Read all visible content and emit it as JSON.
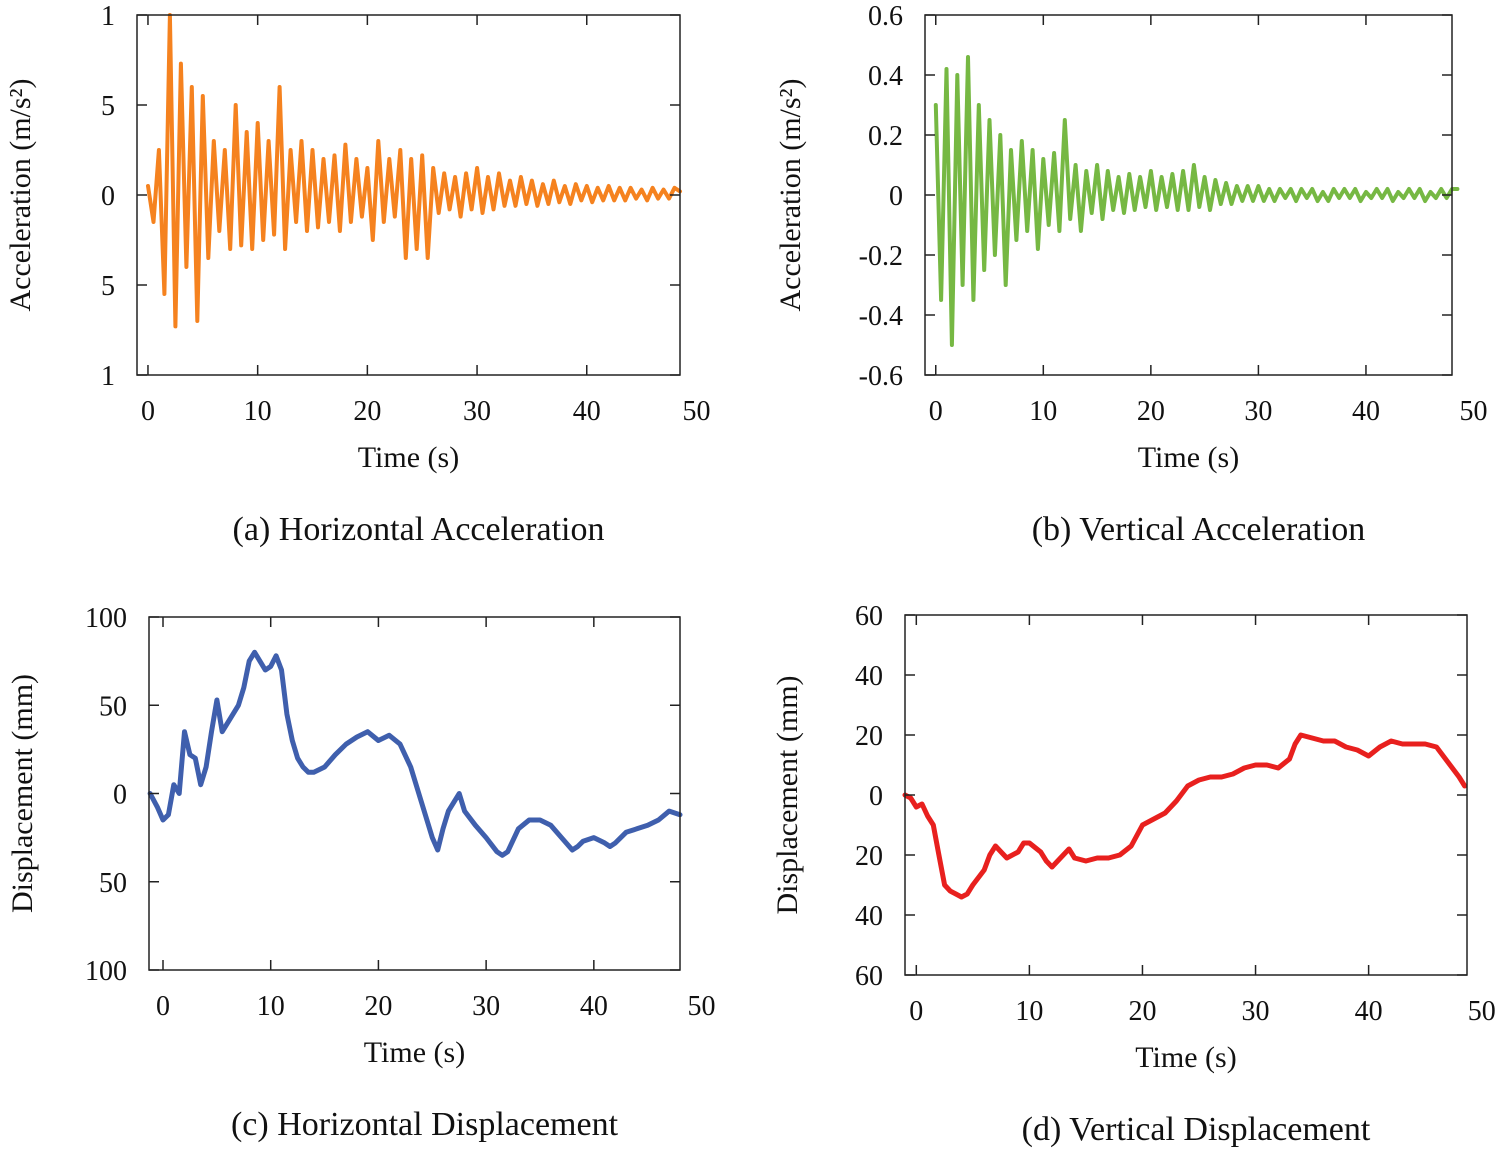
{
  "chart_data": [
    {
      "type": "line",
      "title": "(a) Horizontal Acceleration",
      "xlabel": "Time (s)",
      "ylabel": "Acceleration (m/s²)",
      "color": "#f5821f",
      "xlim": [
        -1,
        48.5
      ],
      "xticks": [
        0,
        10,
        20,
        30,
        40,
        50
      ],
      "ylim": [
        -1,
        1
      ],
      "yticks": [
        {
          "value": -1,
          "label": "1"
        },
        {
          "value": -0.5,
          "label": "5"
        },
        0,
        {
          "value": 0.5,
          "label": "5"
        },
        1
      ],
      "x": [
        0,
        0.5,
        1,
        1.5,
        2,
        2.5,
        3,
        3.5,
        4,
        4.5,
        5,
        5.5,
        6,
        6.5,
        7,
        7.5,
        8,
        8.5,
        9,
        9.5,
        10,
        10.5,
        11,
        11.5,
        12,
        12.5,
        13,
        13.5,
        14,
        14.5,
        15,
        15.5,
        16,
        16.5,
        17,
        17.5,
        18,
        18.5,
        19,
        19.5,
        20,
        20.5,
        21,
        21.5,
        22,
        22.5,
        23,
        23.5,
        24,
        24.5,
        25,
        25.5,
        26,
        26.5,
        27,
        27.5,
        28,
        28.5,
        29,
        29.5,
        30,
        30.5,
        31,
        31.5,
        32,
        32.5,
        33,
        33.5,
        34,
        34.5,
        35,
        35.5,
        36,
        36.5,
        37,
        37.5,
        38,
        38.5,
        39,
        39.5,
        40,
        40.5,
        41,
        41.5,
        42,
        42.5,
        43,
        43.5,
        44,
        44.5,
        45,
        45.5,
        46,
        46.5,
        47,
        47.5,
        48,
        48.5
      ],
      "values": [
        0.05,
        -0.15,
        0.25,
        -0.55,
        1.0,
        -0.73,
        0.73,
        -0.4,
        0.6,
        -0.7,
        0.55,
        -0.35,
        0.3,
        -0.2,
        0.25,
        -0.3,
        0.5,
        -0.28,
        0.35,
        -0.3,
        0.4,
        -0.25,
        0.3,
        -0.22,
        0.6,
        -0.3,
        0.25,
        -0.15,
        0.3,
        -0.2,
        0.25,
        -0.18,
        0.2,
        -0.15,
        0.22,
        -0.2,
        0.28,
        -0.15,
        0.2,
        -0.12,
        0.15,
        -0.25,
        0.3,
        -0.15,
        0.2,
        -0.12,
        0.25,
        -0.35,
        0.2,
        -0.3,
        0.22,
        -0.35,
        0.15,
        -0.1,
        0.12,
        -0.08,
        0.1,
        -0.12,
        0.12,
        -0.08,
        0.15,
        -0.1,
        0.1,
        -0.08,
        0.12,
        -0.06,
        0.08,
        -0.06,
        0.1,
        -0.05,
        0.08,
        -0.06,
        0.06,
        -0.05,
        0.08,
        -0.04,
        0.05,
        -0.05,
        0.06,
        -0.03,
        0.05,
        -0.04,
        0.04,
        -0.03,
        0.05,
        -0.03,
        0.04,
        -0.03,
        0.04,
        -0.02,
        0.03,
        -0.03,
        0.04,
        -0.02,
        0.03,
        -0.02,
        0.04,
        0.02
      ]
    },
    {
      "type": "line",
      "title": "(b) Vertical Acceleration",
      "xlabel": "Time (s)",
      "ylabel": "Acceleration (m/s²)",
      "color": "#76b843",
      "xlim": [
        -1,
        48
      ],
      "xticks": [
        0,
        10,
        20,
        30,
        40,
        50
      ],
      "ylim": [
        -0.6,
        0.6
      ],
      "yticks": [
        -0.6,
        -0.4,
        -0.2,
        0,
        0.2,
        0.4,
        0.6
      ],
      "x": [
        0,
        0.5,
        1,
        1.5,
        2,
        2.5,
        3,
        3.5,
        4,
        4.5,
        5,
        5.5,
        6,
        6.5,
        7,
        7.5,
        8,
        8.5,
        9,
        9.5,
        10,
        10.5,
        11,
        11.5,
        12,
        12.5,
        13,
        13.5,
        14,
        14.5,
        15,
        15.5,
        16,
        16.5,
        17,
        17.5,
        18,
        18.5,
        19,
        19.5,
        20,
        20.5,
        21,
        21.5,
        22,
        22.5,
        23,
        23.5,
        24,
        24.5,
        25,
        25.5,
        26,
        26.5,
        27,
        27.5,
        28,
        28.5,
        29,
        29.5,
        30,
        30.5,
        31,
        31.5,
        32,
        32.5,
        33,
        33.5,
        34,
        34.5,
        35,
        35.5,
        36,
        36.5,
        37,
        37.5,
        38,
        38.5,
        39,
        39.5,
        40,
        40.5,
        41,
        41.5,
        42,
        42.5,
        43,
        43.5,
        44,
        44.5,
        45,
        45.5,
        46,
        46.5,
        47,
        47.5,
        48,
        48.5
      ],
      "values": [
        0.3,
        -0.35,
        0.42,
        -0.5,
        0.4,
        -0.3,
        0.46,
        -0.35,
        0.3,
        -0.25,
        0.25,
        -0.2,
        0.2,
        -0.3,
        0.15,
        -0.15,
        0.18,
        -0.12,
        0.15,
        -0.18,
        0.12,
        -0.1,
        0.14,
        -0.12,
        0.25,
        -0.08,
        0.1,
        -0.12,
        0.08,
        -0.06,
        0.1,
        -0.08,
        0.08,
        -0.05,
        0.06,
        -0.06,
        0.07,
        -0.05,
        0.06,
        -0.04,
        0.08,
        -0.05,
        0.06,
        -0.04,
        0.07,
        -0.05,
        0.08,
        -0.05,
        0.1,
        -0.04,
        0.06,
        -0.05,
        0.05,
        -0.03,
        0.04,
        -0.03,
        0.03,
        -0.02,
        0.03,
        -0.02,
        0.03,
        -0.02,
        0.02,
        -0.02,
        0.02,
        -0.01,
        0.02,
        -0.02,
        0.02,
        -0.01,
        0.02,
        -0.02,
        0.01,
        -0.02,
        0.02,
        -0.01,
        0.02,
        -0.01,
        0.02,
        -0.02,
        0.01,
        -0.01,
        0.02,
        -0.01,
        0.02,
        -0.02,
        0.01,
        -0.01,
        0.02,
        -0.01,
        0.02,
        -0.02,
        0.01,
        -0.01,
        0.02,
        -0.01,
        0.02,
        0.02
      ]
    },
    {
      "type": "line",
      "title": "(c) Horizontal Displacement",
      "xlabel": "Time (s)",
      "ylabel": "Displacement (mm)",
      "color": "#3f5fad",
      "xlim": [
        -1.3,
        48
      ],
      "xticks": [
        0,
        10,
        20,
        30,
        40,
        50
      ],
      "ylim": [
        -100,
        100
      ],
      "yticks": [
        {
          "value": -100,
          "label": "100"
        },
        {
          "value": -50,
          "label": "50"
        },
        0,
        50,
        100
      ],
      "x": [
        -1.2,
        -0.5,
        0,
        0.5,
        1,
        1.5,
        2,
        2.5,
        3,
        3.5,
        4,
        4.5,
        5,
        5.5,
        6,
        7,
        7.5,
        8,
        8.5,
        9,
        9.5,
        10,
        10.5,
        11,
        11.5,
        12,
        12.5,
        13,
        13.5,
        14,
        15,
        16,
        17,
        18,
        19,
        20,
        21,
        22,
        23,
        24,
        25,
        25.5,
        26,
        26.5,
        27,
        27.5,
        28,
        29,
        30,
        31,
        31.5,
        32,
        33,
        34,
        35,
        36,
        37,
        38,
        38.5,
        39,
        40,
        41,
        41.5,
        42,
        43,
        44,
        45,
        46,
        47,
        48
      ],
      "values": [
        0,
        -8,
        -15,
        -12,
        5,
        0,
        35,
        22,
        20,
        5,
        15,
        35,
        53,
        35,
        40,
        50,
        60,
        75,
        80,
        75,
        70,
        72,
        78,
        70,
        45,
        30,
        20,
        15,
        12,
        12,
        15,
        22,
        28,
        32,
        35,
        30,
        33,
        28,
        15,
        -5,
        -25,
        -32,
        -20,
        -10,
        -5,
        0,
        -10,
        -18,
        -25,
        -33,
        -35,
        -33,
        -20,
        -15,
        -15,
        -18,
        -25,
        -32,
        -30,
        -27,
        -25,
        -28,
        -30,
        -28,
        -22,
        -20,
        -18,
        -15,
        -10,
        -12
      ]
    },
    {
      "type": "line",
      "title": "(d) Vertical Displacement",
      "xlabel": "Time (s)",
      "ylabel": "Displacement (mm)",
      "color": "#e8201e",
      "xlim": [
        -1,
        48.7
      ],
      "xticks": [
        0,
        10,
        20,
        30,
        40,
        50
      ],
      "ylim": [
        -60,
        60
      ],
      "yticks": [
        {
          "value": -60,
          "label": "60"
        },
        {
          "value": -40,
          "label": "40"
        },
        {
          "value": -20,
          "label": "20"
        },
        0,
        20,
        40,
        60
      ],
      "x": [
        -1,
        -0.5,
        0,
        0.5,
        1,
        1.5,
        2,
        2.5,
        3,
        3.5,
        4,
        4.5,
        5,
        6,
        6.5,
        7,
        7.5,
        8,
        9,
        9.5,
        10,
        11,
        11.5,
        12,
        13,
        13.5,
        14,
        15,
        16,
        17,
        18,
        19,
        20,
        21,
        22,
        23,
        24,
        25,
        26,
        27,
        28,
        29,
        30,
        31,
        32,
        33,
        33.5,
        34,
        35,
        36,
        37,
        38,
        39,
        40,
        41,
        42,
        43,
        44,
        45,
        46,
        47,
        48,
        48.5
      ],
      "values": [
        0,
        -1,
        -4,
        -3,
        -7,
        -10,
        -20,
        -30,
        -32,
        -33,
        -34,
        -33,
        -30,
        -25,
        -20,
        -17,
        -19,
        -21,
        -19,
        -16,
        -16,
        -19,
        -22,
        -24,
        -20,
        -18,
        -21,
        -22,
        -21,
        -21,
        -20,
        -17,
        -10,
        -8,
        -6,
        -2,
        3,
        5,
        6,
        6,
        7,
        9,
        10,
        10,
        9,
        12,
        17,
        20,
        19,
        18,
        18,
        16,
        15,
        13,
        16,
        18,
        17,
        17,
        17,
        16,
        11,
        6,
        3
      ]
    }
  ]
}
